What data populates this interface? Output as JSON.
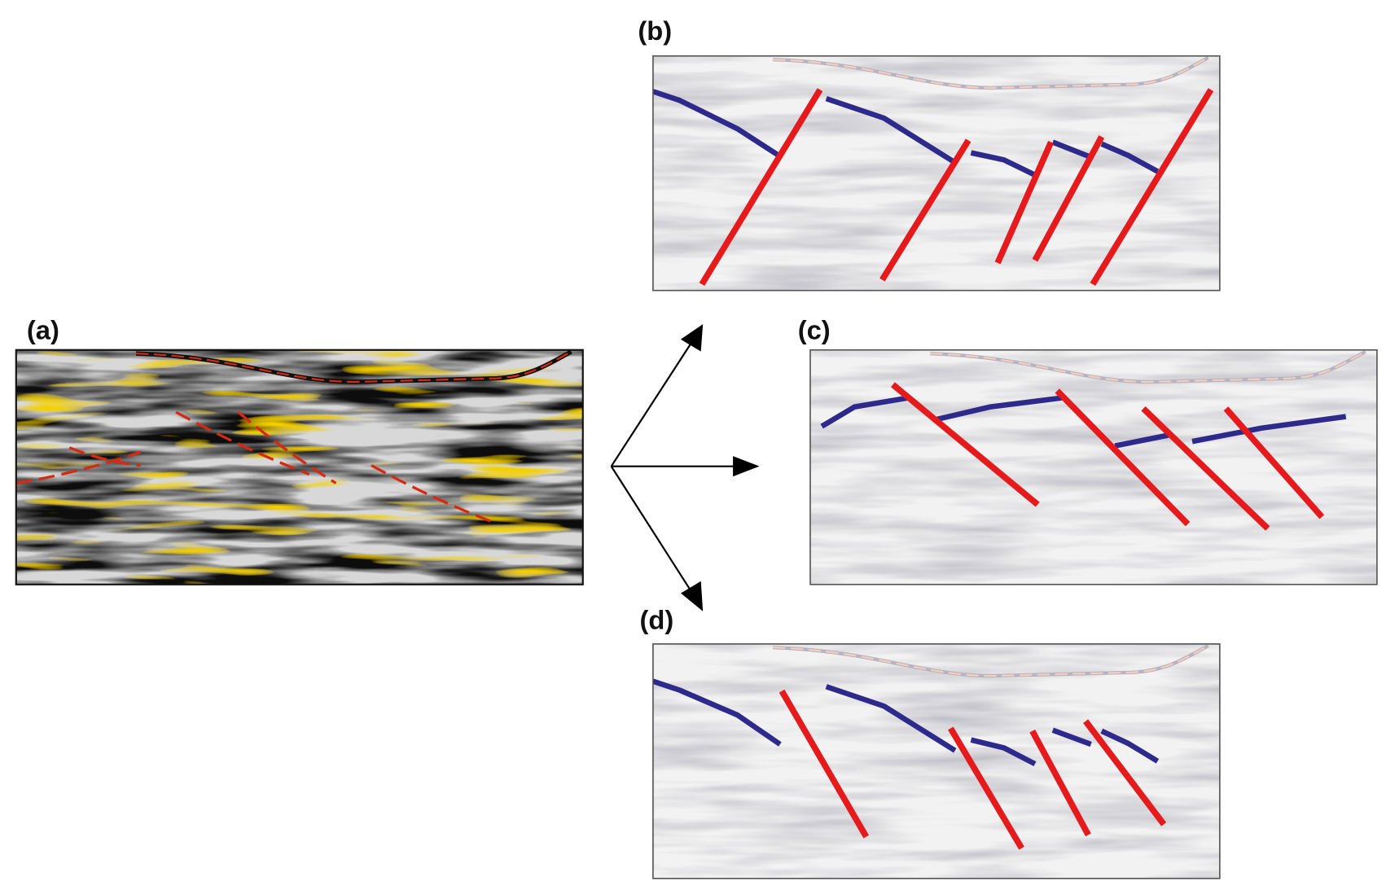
{
  "figure": {
    "panels": [
      {
        "id": "a",
        "label": "(a)",
        "style": "original-seismic"
      },
      {
        "id": "b",
        "label": "(b)",
        "style": "faded-interpretation"
      },
      {
        "id": "c",
        "label": "(c)",
        "style": "faded-interpretation"
      },
      {
        "id": "d",
        "label": "(d)",
        "style": "faded-interpretation"
      }
    ],
    "arrows": [
      "arrow-to-b",
      "arrow-to-c",
      "arrow-to-d"
    ]
  },
  "colors": {
    "fault": "#e41a1c",
    "horizon": "#2e2a8c",
    "seismic_peak": "#f5d000",
    "seismic_hot": "#d62a10",
    "border": "#333333"
  }
}
